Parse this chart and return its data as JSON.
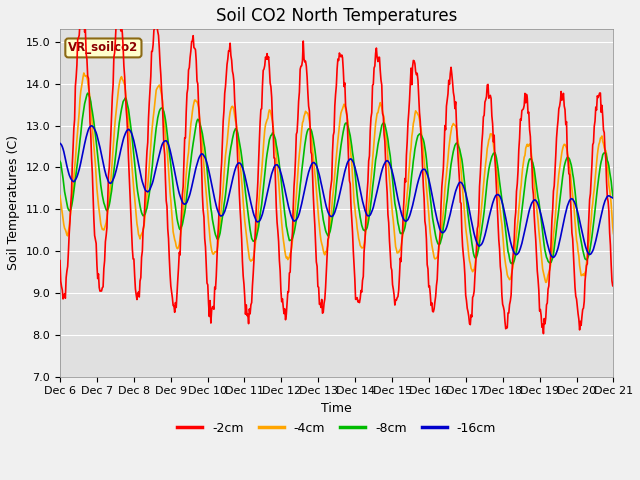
{
  "title": "Soil CO2 North Temperatures",
  "ylabel": "Soil Temperatures (C)",
  "xlabel": "Time",
  "annotation": "VR_soilco2",
  "ylim": [
    7.0,
    15.3
  ],
  "xtick_labels": [
    "Dec 6",
    "Dec 7",
    "Dec 8",
    "Dec 9",
    "Dec 10",
    "Dec 11",
    "Dec 12",
    "Dec 13",
    "Dec 14",
    "Dec 15",
    "Dec 16",
    "Dec 17",
    "Dec 18",
    "Dec 19",
    "Dec 20",
    "Dec 21"
  ],
  "legend_labels": [
    "-2cm",
    "-4cm",
    "-8cm",
    "-16cm"
  ],
  "line_colors": [
    "#ff0000",
    "#ffa500",
    "#00bb00",
    "#0000cc"
  ],
  "fig_facecolor": "#f0f0f0",
  "ax_facecolor": "#e0e0e0",
  "grid_color": "#ffffff",
  "title_fontsize": 12,
  "label_fontsize": 9,
  "tick_fontsize": 8,
  "legend_fontsize": 9
}
